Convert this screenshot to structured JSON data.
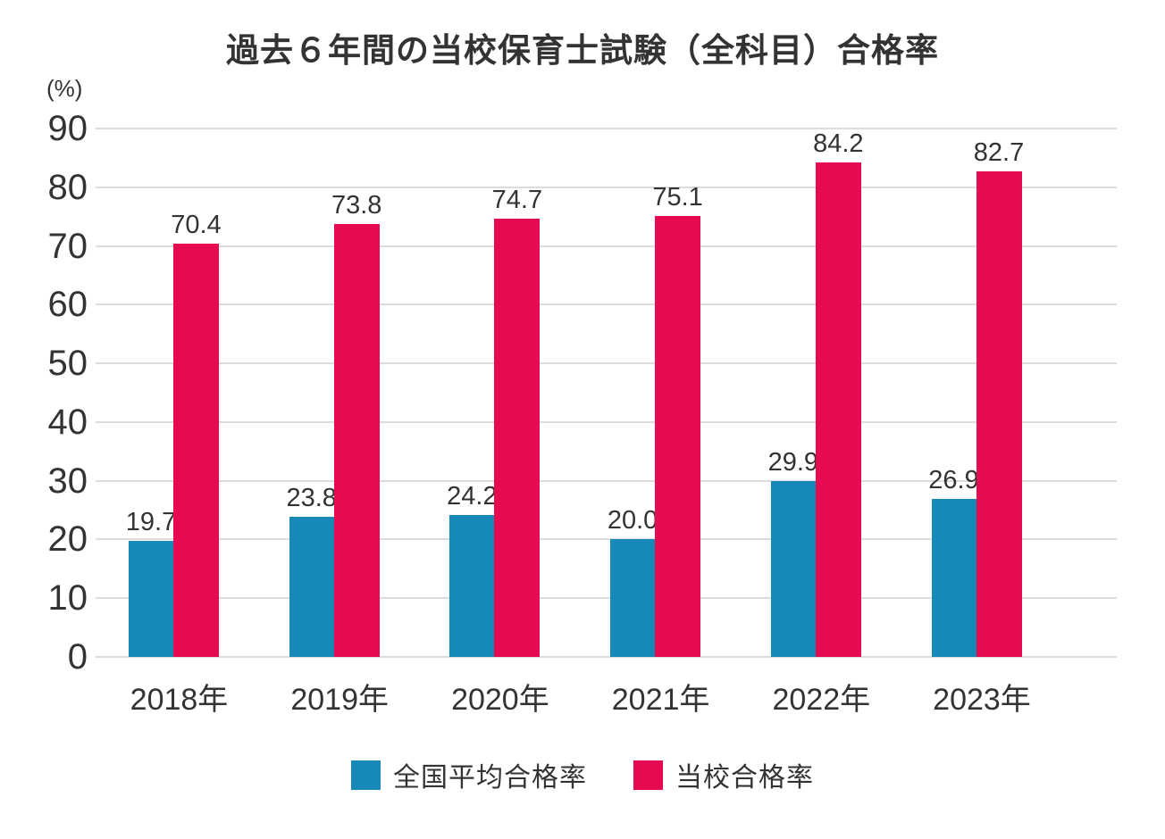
{
  "page": {
    "background": "#ffffff",
    "text_color": "#333333",
    "gridline_color": "#dcdcdc"
  },
  "chart_data": {
    "type": "bar",
    "title": "過去６年間の当校保育士試験（全科目）合格率",
    "unit_label": "(%)",
    "categories": [
      "2018年",
      "2019年",
      "2020年",
      "2021年",
      "2022年",
      "2023年"
    ],
    "series": [
      {
        "name": "全国平均合格率",
        "color": "#1689b8",
        "values": [
          19.7,
          23.8,
          24.2,
          20.0,
          29.9,
          26.9
        ]
      },
      {
        "name": "当校合格率",
        "color": "#e60a50",
        "values": [
          70.4,
          73.8,
          74.7,
          75.1,
          84.2,
          82.7
        ]
      }
    ],
    "ylim": [
      0,
      90
    ],
    "yticks": [
      0,
      10,
      20,
      30,
      40,
      50,
      60,
      70,
      80,
      90
    ],
    "grid": true,
    "data_labels": true,
    "legend_position": "bottom"
  }
}
